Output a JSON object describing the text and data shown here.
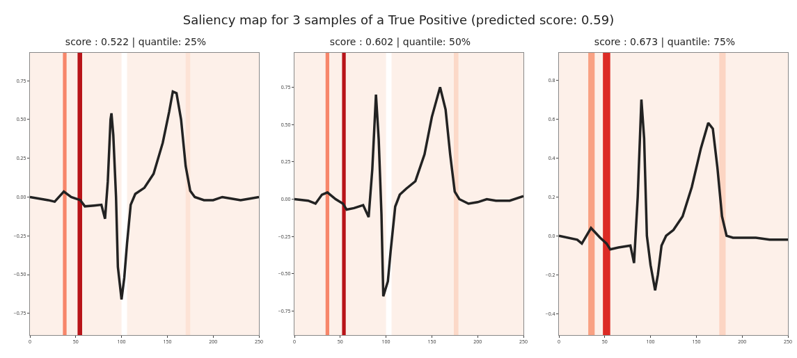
{
  "chart_data": [
    {
      "type": "line",
      "title": "score : 0.522 | quantile: 25%",
      "annotations": [
        "Saliency map for 3 samples of a True Positive (predicted score: 0.59)"
      ],
      "series": [
        {
          "color": "#222222",
          "x": [
            0,
            20,
            27,
            37,
            45,
            55,
            60,
            70,
            78,
            82,
            85,
            88,
            89,
            91,
            94,
            96,
            100,
            103,
            106,
            110,
            115,
            125,
            135,
            145,
            152,
            156,
            160,
            165,
            170,
            175,
            180,
            190,
            200,
            210,
            220,
            230,
            240,
            250
          ],
          "values": [
            0,
            -0.02,
            -0.03,
            0.035,
            0,
            -0.02,
            -0.06,
            -0.055,
            -0.05,
            -0.14,
            0.1,
            0.5,
            0.54,
            0.4,
            0,
            -0.45,
            -0.66,
            -0.52,
            -0.3,
            -0.05,
            0.02,
            0.06,
            0.15,
            0.35,
            0.55,
            0.68,
            0.67,
            0.5,
            0.2,
            0.04,
            0,
            -0.02,
            -0.02,
            0,
            -0.01,
            -0.02,
            -0.01,
            0
          ]
        }
      ],
      "bands": [
        {
          "axis": "x",
          "from": 36,
          "to": 40,
          "color": "#f7866a"
        },
        {
          "axis": "x",
          "from": 52,
          "to": 57,
          "color": "#b81419"
        },
        {
          "axis": "x",
          "from": 100,
          "to": 106,
          "color": "#ffffff"
        },
        {
          "axis": "x",
          "from": 170,
          "to": 175,
          "color": "#fde3d6"
        }
      ],
      "xlim": [
        0,
        250
      ],
      "xticks": [
        0,
        50,
        100,
        150,
        200,
        250
      ],
      "ylim": [
        -0.89,
        0.93
      ],
      "yticks": [
        {
          "value": 0.75,
          "label": "0.75"
        },
        {
          "value": 0.5,
          "label": "0.50"
        },
        {
          "value": 0.25,
          "label": "0.25"
        },
        {
          "value": 0,
          "label": "0.00"
        },
        {
          "value": -0.25,
          "label": "−0.25"
        },
        {
          "value": -0.5,
          "label": "−0.50"
        },
        {
          "value": -0.75,
          "label": "−0.75"
        }
      ]
    },
    {
      "type": "line",
      "title": "score : 0.602 | quantile: 50%",
      "series": [
        {
          "color": "#222222",
          "x": [
            0,
            15,
            23,
            30,
            36,
            45,
            53,
            57,
            65,
            75,
            81,
            85,
            89,
            92,
            95,
            97,
            102,
            105,
            110,
            115,
            122,
            132,
            142,
            150,
            159,
            165,
            170,
            175,
            180,
            190,
            200,
            210,
            220,
            235,
            250
          ],
          "values": [
            0,
            -0.01,
            -0.03,
            0.03,
            0.045,
            0,
            -0.03,
            -0.07,
            -0.06,
            -0.04,
            -0.12,
            0.2,
            0.7,
            0.4,
            -0.1,
            -0.65,
            -0.55,
            -0.35,
            -0.05,
            0.03,
            0.07,
            0.12,
            0.3,
            0.55,
            0.75,
            0.6,
            0.3,
            0.05,
            0,
            -0.03,
            -0.02,
            0,
            -0.01,
            -0.01,
            0.02
          ]
        }
      ],
      "bands": [
        {
          "axis": "x",
          "from": 34,
          "to": 38,
          "color": "#f7866a"
        },
        {
          "axis": "x",
          "from": 52,
          "to": 56,
          "color": "#b81419"
        },
        {
          "axis": "x",
          "from": 100,
          "to": 106,
          "color": "#ffffff"
        },
        {
          "axis": "x",
          "from": 174,
          "to": 179,
          "color": "#fcd9c8"
        }
      ],
      "xlim": [
        0,
        250
      ],
      "xticks": [
        0,
        50,
        100,
        150,
        200,
        250
      ],
      "ylim": [
        -0.91,
        0.98
      ],
      "yticks": [
        {
          "value": 0.75,
          "label": "0.75"
        },
        {
          "value": 0.5,
          "label": "0.50"
        },
        {
          "value": 0.25,
          "label": "0.25"
        },
        {
          "value": 0,
          "label": "0.00"
        },
        {
          "value": -0.25,
          "label": "−0.25"
        },
        {
          "value": -0.5,
          "label": "−0.50"
        },
        {
          "value": -0.75,
          "label": "−0.75"
        }
      ]
    },
    {
      "type": "line",
      "title": "score : 0.673 | quantile: 75%",
      "series": [
        {
          "color": "#222222",
          "x": [
            0,
            20,
            25,
            35,
            45,
            52,
            56,
            65,
            78,
            82,
            86,
            90,
            93,
            96,
            100,
            105,
            108,
            112,
            117,
            125,
            135,
            145,
            155,
            163,
            168,
            173,
            178,
            183,
            190,
            200,
            215,
            230,
            250
          ],
          "values": [
            0,
            -0.02,
            -0.04,
            0.04,
            -0.01,
            -0.04,
            -0.07,
            -0.06,
            -0.05,
            -0.14,
            0.2,
            0.7,
            0.5,
            0,
            -0.15,
            -0.28,
            -0.2,
            -0.05,
            0,
            0.03,
            0.1,
            0.25,
            0.45,
            0.58,
            0.55,
            0.35,
            0.1,
            0,
            -0.01,
            -0.01,
            -0.01,
            -0.02,
            -0.02
          ]
        }
      ],
      "bands": [
        {
          "axis": "x",
          "from": 32,
          "to": 39,
          "color": "#f9a183"
        },
        {
          "axis": "x",
          "from": 48,
          "to": 56,
          "color": "#dc2b25"
        },
        {
          "axis": "x",
          "from": 175,
          "to": 182,
          "color": "#fcd5c3"
        }
      ],
      "xlim": [
        0,
        250
      ],
      "xticks": [
        0,
        50,
        100,
        150,
        200,
        250
      ],
      "ylim": [
        -0.51,
        0.94
      ],
      "yticks": [
        {
          "value": 0.8,
          "label": "0.8"
        },
        {
          "value": 0.6,
          "label": "0.6"
        },
        {
          "value": 0.4,
          "label": "0.4"
        },
        {
          "value": 0.2,
          "label": "0.2"
        },
        {
          "value": 0,
          "label": "0.0"
        },
        {
          "value": -0.2,
          "label": "−0.2"
        },
        {
          "value": -0.4,
          "label": "−0.4"
        }
      ]
    }
  ]
}
